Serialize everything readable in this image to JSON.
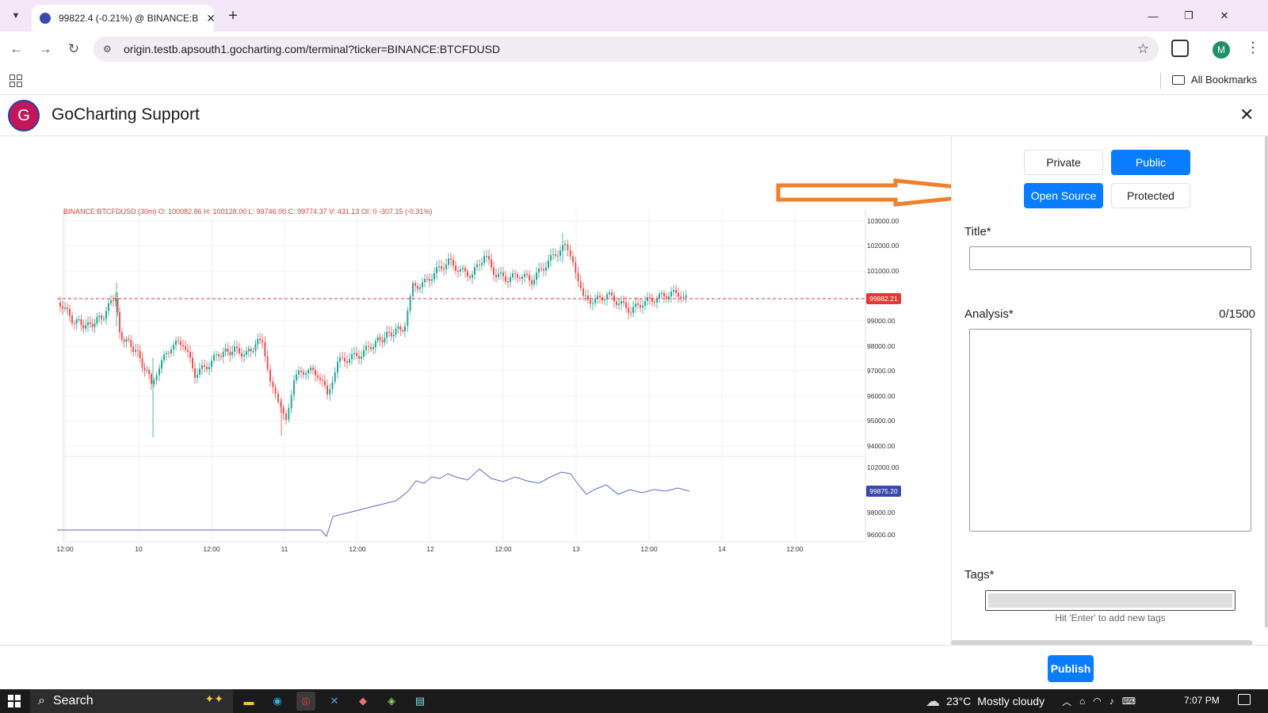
{
  "browser": {
    "tab_title": "99822.4 (-0.21%) @ BINANCE:B",
    "url": "origin.testb.apsouth1.gocharting.com/terminal?ticker=BINANCE:BTCFDUSD",
    "bookmarks_label": "All Bookmarks",
    "profile_initial": "M"
  },
  "modal": {
    "avatar_letter": "G",
    "title": "GoCharting Support"
  },
  "chart": {
    "ohlc_text": "BINANCE:BTCFDUSD (30m)  O: 100082.86  H: 100128.00  L: 99746.00  C: 99774.37  V: 431.13  OI: 0  -307.15  (-0.31%)",
    "price_axis": [
      "103000.00",
      "102000.00",
      "101000.00",
      "99000.00",
      "98000.00",
      "97000.00",
      "96000.00",
      "95000.00",
      "94000.00"
    ],
    "last_price_label": "99882.21",
    "lower_axis": [
      "102000.00",
      "98000.00",
      "96000.00"
    ],
    "lower_last_label": "99875.20",
    "time_axis": [
      "12:00",
      "10",
      "12:00",
      "11",
      "12:00",
      "12",
      "12:00",
      "13",
      "12:00",
      "14",
      "12:00"
    ],
    "colors": {
      "up": "#26a69a",
      "down": "#ef5350",
      "last_line": "#e53935",
      "lower_line": "#5c6bc0",
      "lower_label": "#3949ab"
    }
  },
  "panel": {
    "visibility": {
      "private": "Private",
      "public": "Public",
      "active": "public"
    },
    "license": {
      "open_source": "Open Source",
      "protected": "Protected",
      "active": "open_source"
    },
    "title_label": "Title*",
    "analysis_label": "Analysis*",
    "analysis_counter": "0/1500",
    "tags_label": "Tags*",
    "tags_hint": "Hit 'Enter' to add new tags",
    "publish_label": "Publish",
    "annotation_arrow_color": "#f07f2b"
  },
  "taskbar": {
    "search_label": "Search",
    "temperature": "23°C",
    "weather": "Mostly cloudy",
    "time": "7:07 PM"
  }
}
